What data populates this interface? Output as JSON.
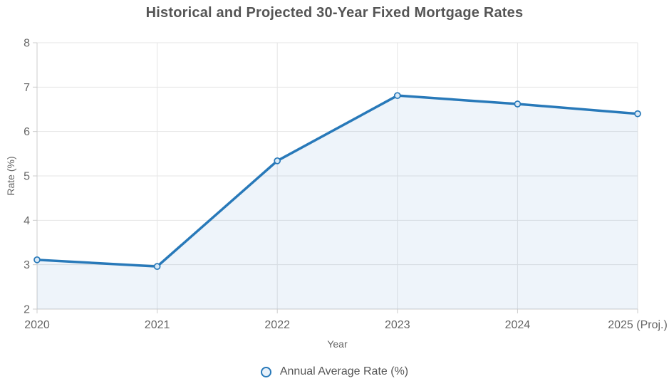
{
  "chart_data": {
    "type": "area",
    "title": "Historical and Projected 30-Year Fixed Mortgage Rates",
    "xlabel": "Year",
    "ylabel": "Rate (%)",
    "categories": [
      "2020",
      "2021",
      "2022",
      "2023",
      "2024",
      "2025 (Proj.)"
    ],
    "series": [
      {
        "name": "Annual Average Rate (%)",
        "values": [
          3.11,
          2.96,
          5.34,
          6.81,
          6.62,
          6.4
        ]
      }
    ],
    "ylim": [
      2,
      8
    ],
    "yticks": [
      2,
      3,
      4,
      5,
      6,
      7,
      8
    ],
    "grid": true,
    "legend_position": "bottom",
    "marker": "circle",
    "colors": {
      "line": "#2879b9",
      "area_fill": "rgba(40, 121, 185, 0.08)",
      "marker_fill": "#d9e9f6",
      "legend_marker_fill": "#e8f1fa",
      "grid": "#e5e5e5",
      "axis": "#cccccc",
      "tick_text": "#666666",
      "axis_title_text": "#666666",
      "title_text": "#555555",
      "legend_text": "#555555"
    }
  }
}
